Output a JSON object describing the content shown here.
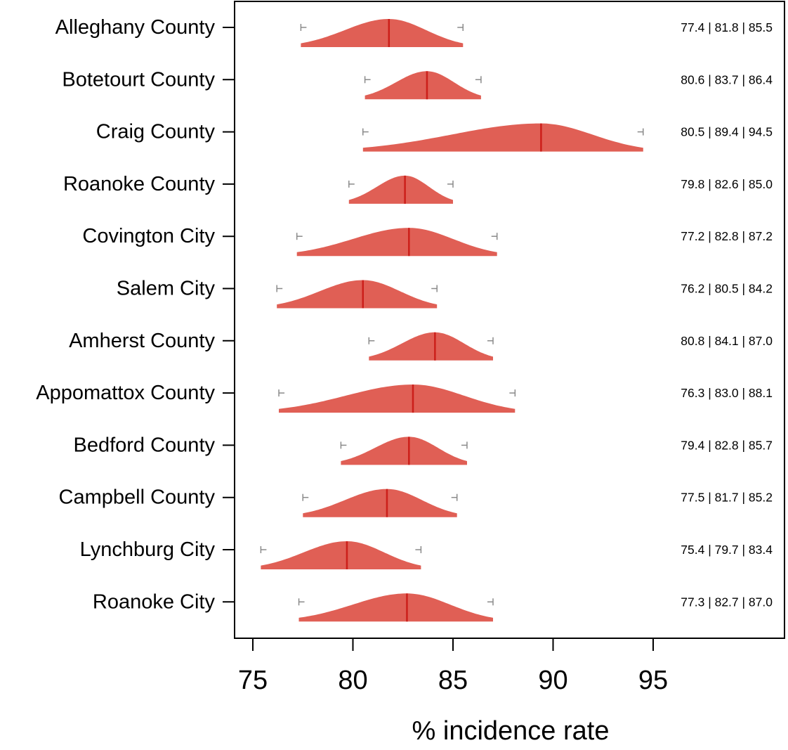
{
  "chart_data": {
    "type": "ridgeline",
    "xlabel": "% incidence rate",
    "ylabel": "",
    "title": "",
    "xlim": [
      74.3,
      101.0
    ],
    "xticks": [
      75,
      80,
      85,
      90,
      95
    ],
    "grid": false,
    "legend": "none",
    "colors": {
      "fill": "#e05f55",
      "median_line": "#cc1f1a",
      "whisker": "#8a8a8a",
      "axis": "#000000"
    },
    "categories": [
      "Alleghany County",
      "Botetourt County",
      "Craig County",
      "Roanoke County",
      "Covington City",
      "Salem City",
      "Amherst County",
      "Appomattox County",
      "Bedford County",
      "Campbell County",
      "Lynchburg City",
      "Roanoke City"
    ],
    "series": [
      {
        "low": 77.4,
        "median": 81.8,
        "high": 85.5,
        "label": "77.4 | 81.8 | 85.5"
      },
      {
        "low": 80.6,
        "median": 83.7,
        "high": 86.4,
        "label": "80.6 | 83.7 | 86.4"
      },
      {
        "low": 80.5,
        "median": 89.4,
        "high": 94.5,
        "label": "80.5 | 89.4 | 94.5"
      },
      {
        "low": 79.8,
        "median": 82.6,
        "high": 85.0,
        "label": "79.8 | 82.6 | 85.0"
      },
      {
        "low": 77.2,
        "median": 82.8,
        "high": 87.2,
        "label": "77.2 | 82.8 | 87.2"
      },
      {
        "low": 76.2,
        "median": 80.5,
        "high": 84.2,
        "label": "76.2 | 80.5 | 84.2"
      },
      {
        "low": 80.8,
        "median": 84.1,
        "high": 87.0,
        "label": "80.8 | 84.1 | 87.0"
      },
      {
        "low": 76.3,
        "median": 83.0,
        "high": 88.1,
        "label": "76.3 | 83.0 | 88.1"
      },
      {
        "low": 79.4,
        "median": 82.8,
        "high": 85.7,
        "label": "79.4 | 82.8 | 85.7"
      },
      {
        "low": 77.5,
        "median": 81.7,
        "high": 85.2,
        "label": "77.5 | 81.7 | 85.2"
      },
      {
        "low": 75.4,
        "median": 79.7,
        "high": 83.4,
        "label": "75.4 | 79.7 | 83.4"
      },
      {
        "low": 77.3,
        "median": 82.7,
        "high": 87.0,
        "label": "77.3 | 82.7 | 87.0"
      }
    ]
  }
}
